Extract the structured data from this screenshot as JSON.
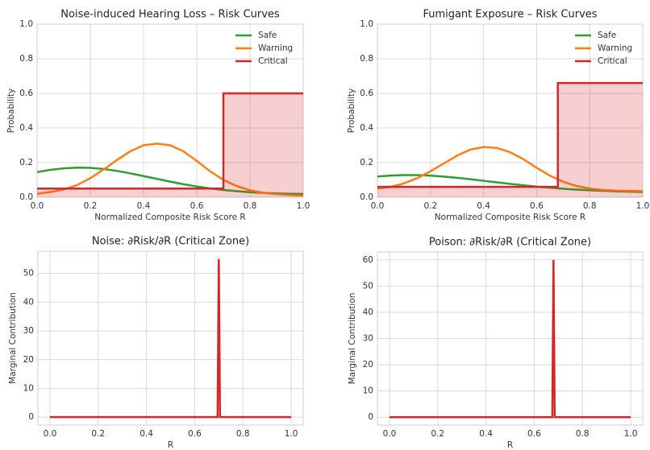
{
  "chart_data": [
    {
      "type": "line",
      "title": "Noise-induced Hearing Loss – Risk Curves",
      "xlabel": "Normalized Composite Risk Score R",
      "ylabel": "Probability",
      "xlim": [
        0,
        1
      ],
      "ylim": [
        0,
        1
      ],
      "xticks": [
        {
          "value": 0,
          "label": "0.0"
        },
        0.2,
        0.4,
        0.6,
        0.8,
        {
          "value": 1,
          "label": "1.0"
        }
      ],
      "yticks": [
        {
          "value": 0,
          "label": "0.0"
        },
        0.2,
        0.4,
        0.6,
        0.8,
        {
          "value": 1,
          "label": "1.0"
        }
      ],
      "grid": true,
      "legend": "upper right",
      "x": [
        0,
        0.05,
        0.1,
        0.15,
        0.2,
        0.25,
        0.3,
        0.35,
        0.4,
        0.45,
        0.5,
        0.55,
        0.6,
        0.65,
        0.7,
        0.75,
        0.8,
        0.85,
        0.9,
        0.95,
        1
      ],
      "series": [
        {
          "name": "Safe",
          "color": "#2ca02c",
          "values": [
            0.145,
            0.158,
            0.167,
            0.171,
            0.17,
            0.163,
            0.152,
            0.138,
            0.122,
            0.106,
            0.09,
            0.075,
            0.062,
            0.051,
            0.042,
            0.035,
            0.029,
            0.025,
            0.022,
            0.02,
            0.019
          ]
        },
        {
          "name": "Warning",
          "color": "#ff7f0e",
          "values": [
            0.02,
            0.03,
            0.045,
            0.07,
            0.11,
            0.16,
            0.215,
            0.265,
            0.3,
            0.31,
            0.3,
            0.265,
            0.21,
            0.15,
            0.1,
            0.065,
            0.04,
            0.025,
            0.018,
            0.013,
            0.01
          ]
        },
        {
          "name": "Critical",
          "color": "#d62728",
          "fill": true,
          "x": [
            0,
            0.7,
            0.7,
            1
          ],
          "values": [
            0.05,
            0.05,
            0.6,
            0.6
          ]
        }
      ]
    },
    {
      "type": "line",
      "title": "Fumigant Exposure – Risk Curves",
      "xlabel": "Normalized Composite Risk Score R",
      "ylabel": "Probability",
      "xlim": [
        0,
        1
      ],
      "ylim": [
        0,
        1
      ],
      "xticks": [
        {
          "value": 0,
          "label": "0.0"
        },
        0.2,
        0.4,
        0.6,
        0.8,
        {
          "value": 1,
          "label": "1.0"
        }
      ],
      "yticks": [
        {
          "value": 0,
          "label": "0.0"
        },
        0.2,
        0.4,
        0.6,
        0.8,
        {
          "value": 1,
          "label": "1.0"
        }
      ],
      "grid": true,
      "legend": "upper right",
      "x": [
        0,
        0.05,
        0.1,
        0.15,
        0.2,
        0.25,
        0.3,
        0.35,
        0.4,
        0.45,
        0.5,
        0.55,
        0.6,
        0.65,
        0.7,
        0.75,
        0.8,
        0.85,
        0.9,
        0.95,
        1
      ],
      "series": [
        {
          "name": "Safe",
          "color": "#2ca02c",
          "values": [
            0.12,
            0.125,
            0.128,
            0.128,
            0.125,
            0.119,
            0.112,
            0.104,
            0.095,
            0.086,
            0.077,
            0.069,
            0.061,
            0.055,
            0.049,
            0.044,
            0.04,
            0.037,
            0.034,
            0.032,
            0.03
          ]
        },
        {
          "name": "Warning",
          "color": "#ff7f0e",
          "values": [
            0.05,
            0.06,
            0.08,
            0.11,
            0.15,
            0.195,
            0.24,
            0.275,
            0.29,
            0.285,
            0.26,
            0.22,
            0.17,
            0.125,
            0.09,
            0.065,
            0.05,
            0.042,
            0.038,
            0.036,
            0.035
          ]
        },
        {
          "name": "Critical",
          "color": "#d62728",
          "fill": true,
          "x": [
            0,
            0.68,
            0.68,
            1
          ],
          "values": [
            0.06,
            0.06,
            0.66,
            0.66
          ]
        }
      ]
    },
    {
      "type": "line",
      "title": "Noise: ∂Risk/∂R (Critical Zone)",
      "xlabel": "R",
      "ylabel": "Marginal Contribution",
      "xlim": [
        -0.05,
        1.05
      ],
      "ylim": [
        -2.75,
        57.75
      ],
      "xticks": [
        {
          "value": 0,
          "label": "0.0"
        },
        0.2,
        0.4,
        0.6,
        0.8,
        {
          "value": 1,
          "label": "1.0"
        }
      ],
      "yticks": [
        0,
        10,
        20,
        30,
        40,
        50
      ],
      "grid": true,
      "x": [
        0,
        0.695,
        0.7,
        0.705,
        1
      ],
      "values": [
        0,
        0,
        55,
        0,
        0
      ],
      "color": "#d62728"
    },
    {
      "type": "line",
      "title": "Poison: ∂Risk/∂R (Critical Zone)",
      "xlabel": "R",
      "ylabel": "Marginal Contribution",
      "xlim": [
        -0.05,
        1.05
      ],
      "ylim": [
        -3,
        63
      ],
      "xticks": [
        {
          "value": 0,
          "label": "0.0"
        },
        0.2,
        0.4,
        0.6,
        0.8,
        {
          "value": 1,
          "label": "1.0"
        }
      ],
      "yticks": [
        0,
        10,
        20,
        30,
        40,
        50,
        60
      ],
      "grid": true,
      "x": [
        0,
        0.675,
        0.68,
        0.685,
        1
      ],
      "values": [
        0,
        0,
        60,
        0,
        0
      ],
      "color": "#d62728"
    }
  ]
}
